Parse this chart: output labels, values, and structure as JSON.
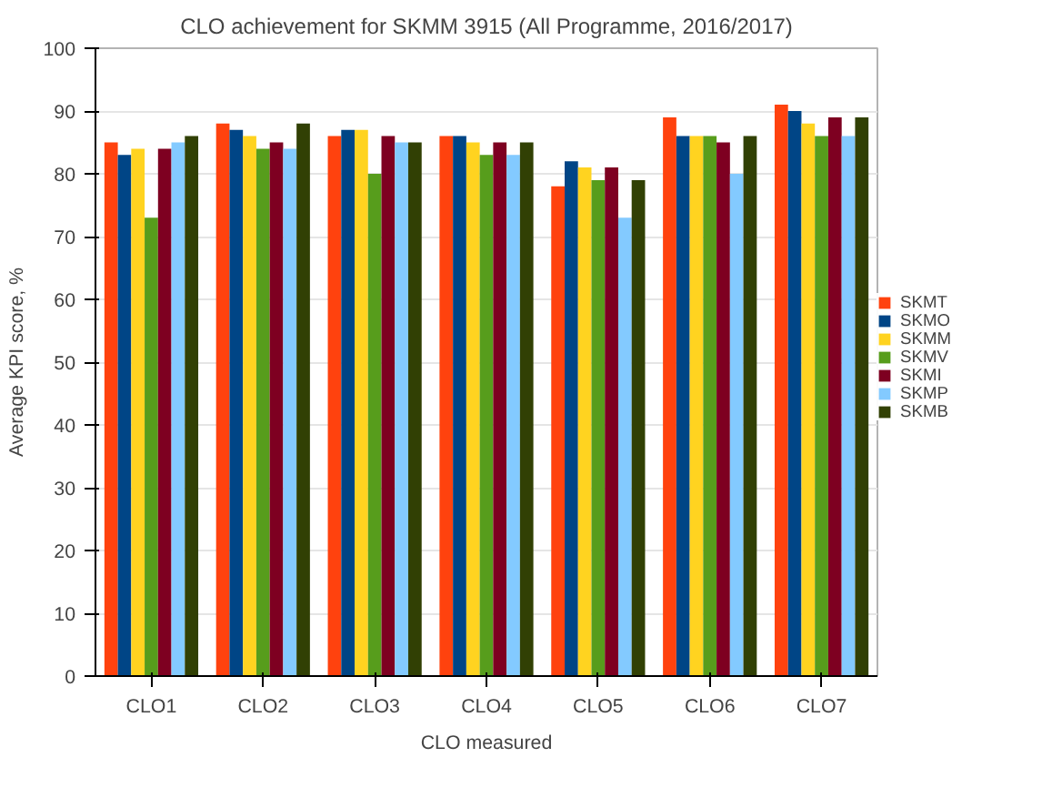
{
  "chart_data": {
    "type": "bar",
    "title": "CLO achievement for SKMM 3915 (All Programme, 2016/2017)",
    "xlabel": "CLO measured",
    "ylabel": "Average KPI score, %",
    "categories": [
      "CLO1",
      "CLO2",
      "CLO3",
      "CLO4",
      "CLO5",
      "CLO6",
      "CLO7"
    ],
    "series": [
      {
        "name": "SKMT",
        "color": "#ff420e",
        "values": [
          85,
          88,
          86,
          86,
          78,
          89,
          91
        ]
      },
      {
        "name": "SKMO",
        "color": "#004586",
        "values": [
          83,
          87,
          87,
          86,
          82,
          86,
          90
        ]
      },
      {
        "name": "SKMM",
        "color": "#ffd320",
        "values": [
          84,
          86,
          87,
          85,
          81,
          86,
          88
        ]
      },
      {
        "name": "SKMV",
        "color": "#579d1c",
        "values": [
          73,
          84,
          80,
          83,
          79,
          86,
          86
        ]
      },
      {
        "name": "SKMI",
        "color": "#7e0021",
        "values": [
          84,
          85,
          86,
          85,
          81,
          85,
          89
        ]
      },
      {
        "name": "SKMP",
        "color": "#83caff",
        "values": [
          85,
          84,
          85,
          83,
          73,
          80,
          86
        ]
      },
      {
        "name": "SKMB",
        "color": "#314004",
        "values": [
          86,
          88,
          85,
          85,
          79,
          86,
          89
        ]
      }
    ],
    "ylim": [
      0,
      100
    ],
    "yticks": [
      0,
      10,
      20,
      30,
      40,
      50,
      60,
      70,
      80,
      90,
      100
    ],
    "grid": "y",
    "legend": "right"
  }
}
